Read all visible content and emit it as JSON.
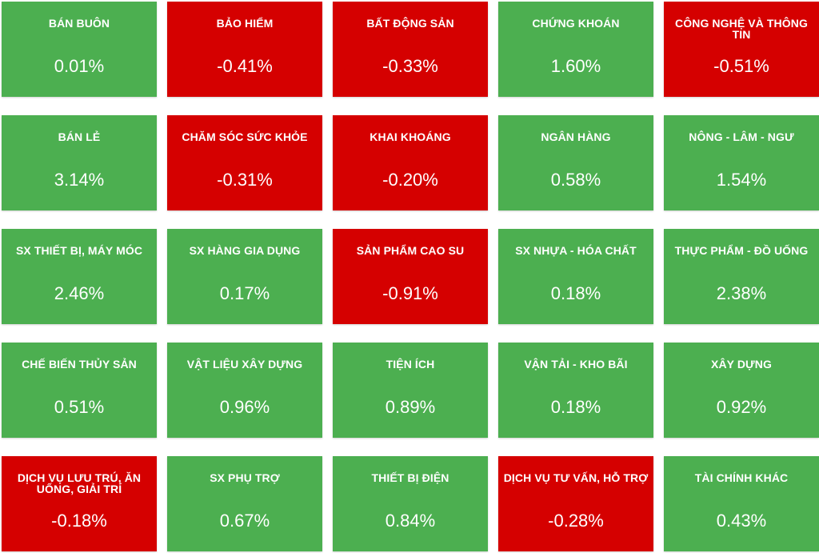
{
  "colors": {
    "up": "#4caf50",
    "down": "#d50000",
    "text": "#ffffff"
  },
  "sectors": [
    {
      "name": "BÁN BUÔN",
      "change": "0.01%",
      "direction": "up"
    },
    {
      "name": "BẢO HIỂM",
      "change": "-0.41%",
      "direction": "down"
    },
    {
      "name": "BẤT ĐỘNG SẢN",
      "change": "-0.33%",
      "direction": "down"
    },
    {
      "name": "CHỨNG KHOÁN",
      "change": "1.60%",
      "direction": "up"
    },
    {
      "name": "CÔNG NGHỆ VÀ THÔNG TIN",
      "change": "-0.51%",
      "direction": "down"
    },
    {
      "name": "BÁN LẺ",
      "change": "3.14%",
      "direction": "up"
    },
    {
      "name": "CHĂM SÓC SỨC KHỎE",
      "change": "-0.31%",
      "direction": "down"
    },
    {
      "name": "KHAI KHOÁNG",
      "change": "-0.20%",
      "direction": "down"
    },
    {
      "name": "NGÂN HÀNG",
      "change": "0.58%",
      "direction": "up"
    },
    {
      "name": "NÔNG - LÂM - NGƯ",
      "change": "1.54%",
      "direction": "up"
    },
    {
      "name": "SX THIẾT BỊ, MÁY MÓC",
      "change": "2.46%",
      "direction": "up"
    },
    {
      "name": "SX HÀNG GIA DỤNG",
      "change": "0.17%",
      "direction": "up"
    },
    {
      "name": "SẢN PHẨM CAO SU",
      "change": "-0.91%",
      "direction": "down"
    },
    {
      "name": "SX NHỰA - HÓA CHẤT",
      "change": "0.18%",
      "direction": "up"
    },
    {
      "name": "THỰC PHẨM - ĐỒ UỐNG",
      "change": "2.38%",
      "direction": "up"
    },
    {
      "name": "CHẾ BIẾN THỦY SẢN",
      "change": "0.51%",
      "direction": "up"
    },
    {
      "name": "VẬT LIỆU XÂY DỰNG",
      "change": "0.96%",
      "direction": "up"
    },
    {
      "name": "TIỆN ÍCH",
      "change": "0.89%",
      "direction": "up"
    },
    {
      "name": "VẬN TẢI - KHO BÃI",
      "change": "0.18%",
      "direction": "up"
    },
    {
      "name": "XÂY DỰNG",
      "change": "0.92%",
      "direction": "up"
    },
    {
      "name": "DỊCH VỤ LƯU TRÚ, ĂN UỐNG, GIẢI TRÍ",
      "change": "-0.18%",
      "direction": "down"
    },
    {
      "name": "SX PHỤ TRỢ",
      "change": "0.67%",
      "direction": "up"
    },
    {
      "name": "THIẾT BỊ ĐIỆN",
      "change": "0.84%",
      "direction": "up"
    },
    {
      "name": "DỊCH VỤ TƯ VẤN, HỖ TRỢ",
      "change": "-0.28%",
      "direction": "down"
    },
    {
      "name": "TÀI CHÍNH KHÁC",
      "change": "0.43%",
      "direction": "up"
    }
  ]
}
